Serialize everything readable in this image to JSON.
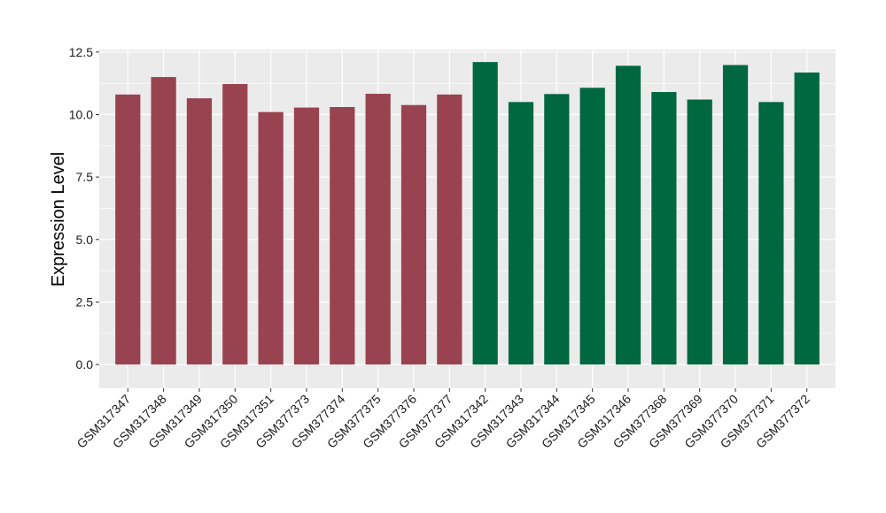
{
  "chart_data": {
    "type": "bar",
    "ylabel": "Expression Level",
    "xlabel": "",
    "ylim": [
      -0.95,
      12.6
    ],
    "yticks": [
      0.0,
      2.5,
      5.0,
      7.5,
      10.0,
      12.5
    ],
    "ytick_labels": [
      "0.0",
      "2.5",
      "5.0",
      "7.5",
      "10.0",
      "12.5"
    ],
    "grid": true,
    "categories": [
      "GSM317347",
      "GSM317348",
      "GSM317349",
      "GSM317350",
      "GSM317351",
      "GSM377373",
      "GSM377374",
      "GSM377375",
      "GSM377376",
      "GSM377377",
      "GSM317342",
      "GSM317343",
      "GSM317344",
      "GSM317345",
      "GSM317346",
      "GSM377368",
      "GSM377369",
      "GSM377370",
      "GSM377371",
      "GSM377372"
    ],
    "values": [
      10.8,
      11.5,
      10.65,
      11.22,
      10.1,
      10.28,
      10.3,
      10.83,
      10.38,
      10.8,
      12.1,
      10.5,
      10.82,
      11.07,
      11.95,
      10.9,
      10.6,
      11.98,
      10.5,
      11.68
    ],
    "group_of_bar": [
      0,
      0,
      0,
      0,
      0,
      0,
      0,
      0,
      0,
      0,
      1,
      1,
      1,
      1,
      1,
      1,
      1,
      1,
      1,
      1
    ],
    "group_colors": [
      "#9a4350",
      "#006841"
    ],
    "panel_background": "#ebebeb",
    "grid_color": "#ffffff"
  }
}
